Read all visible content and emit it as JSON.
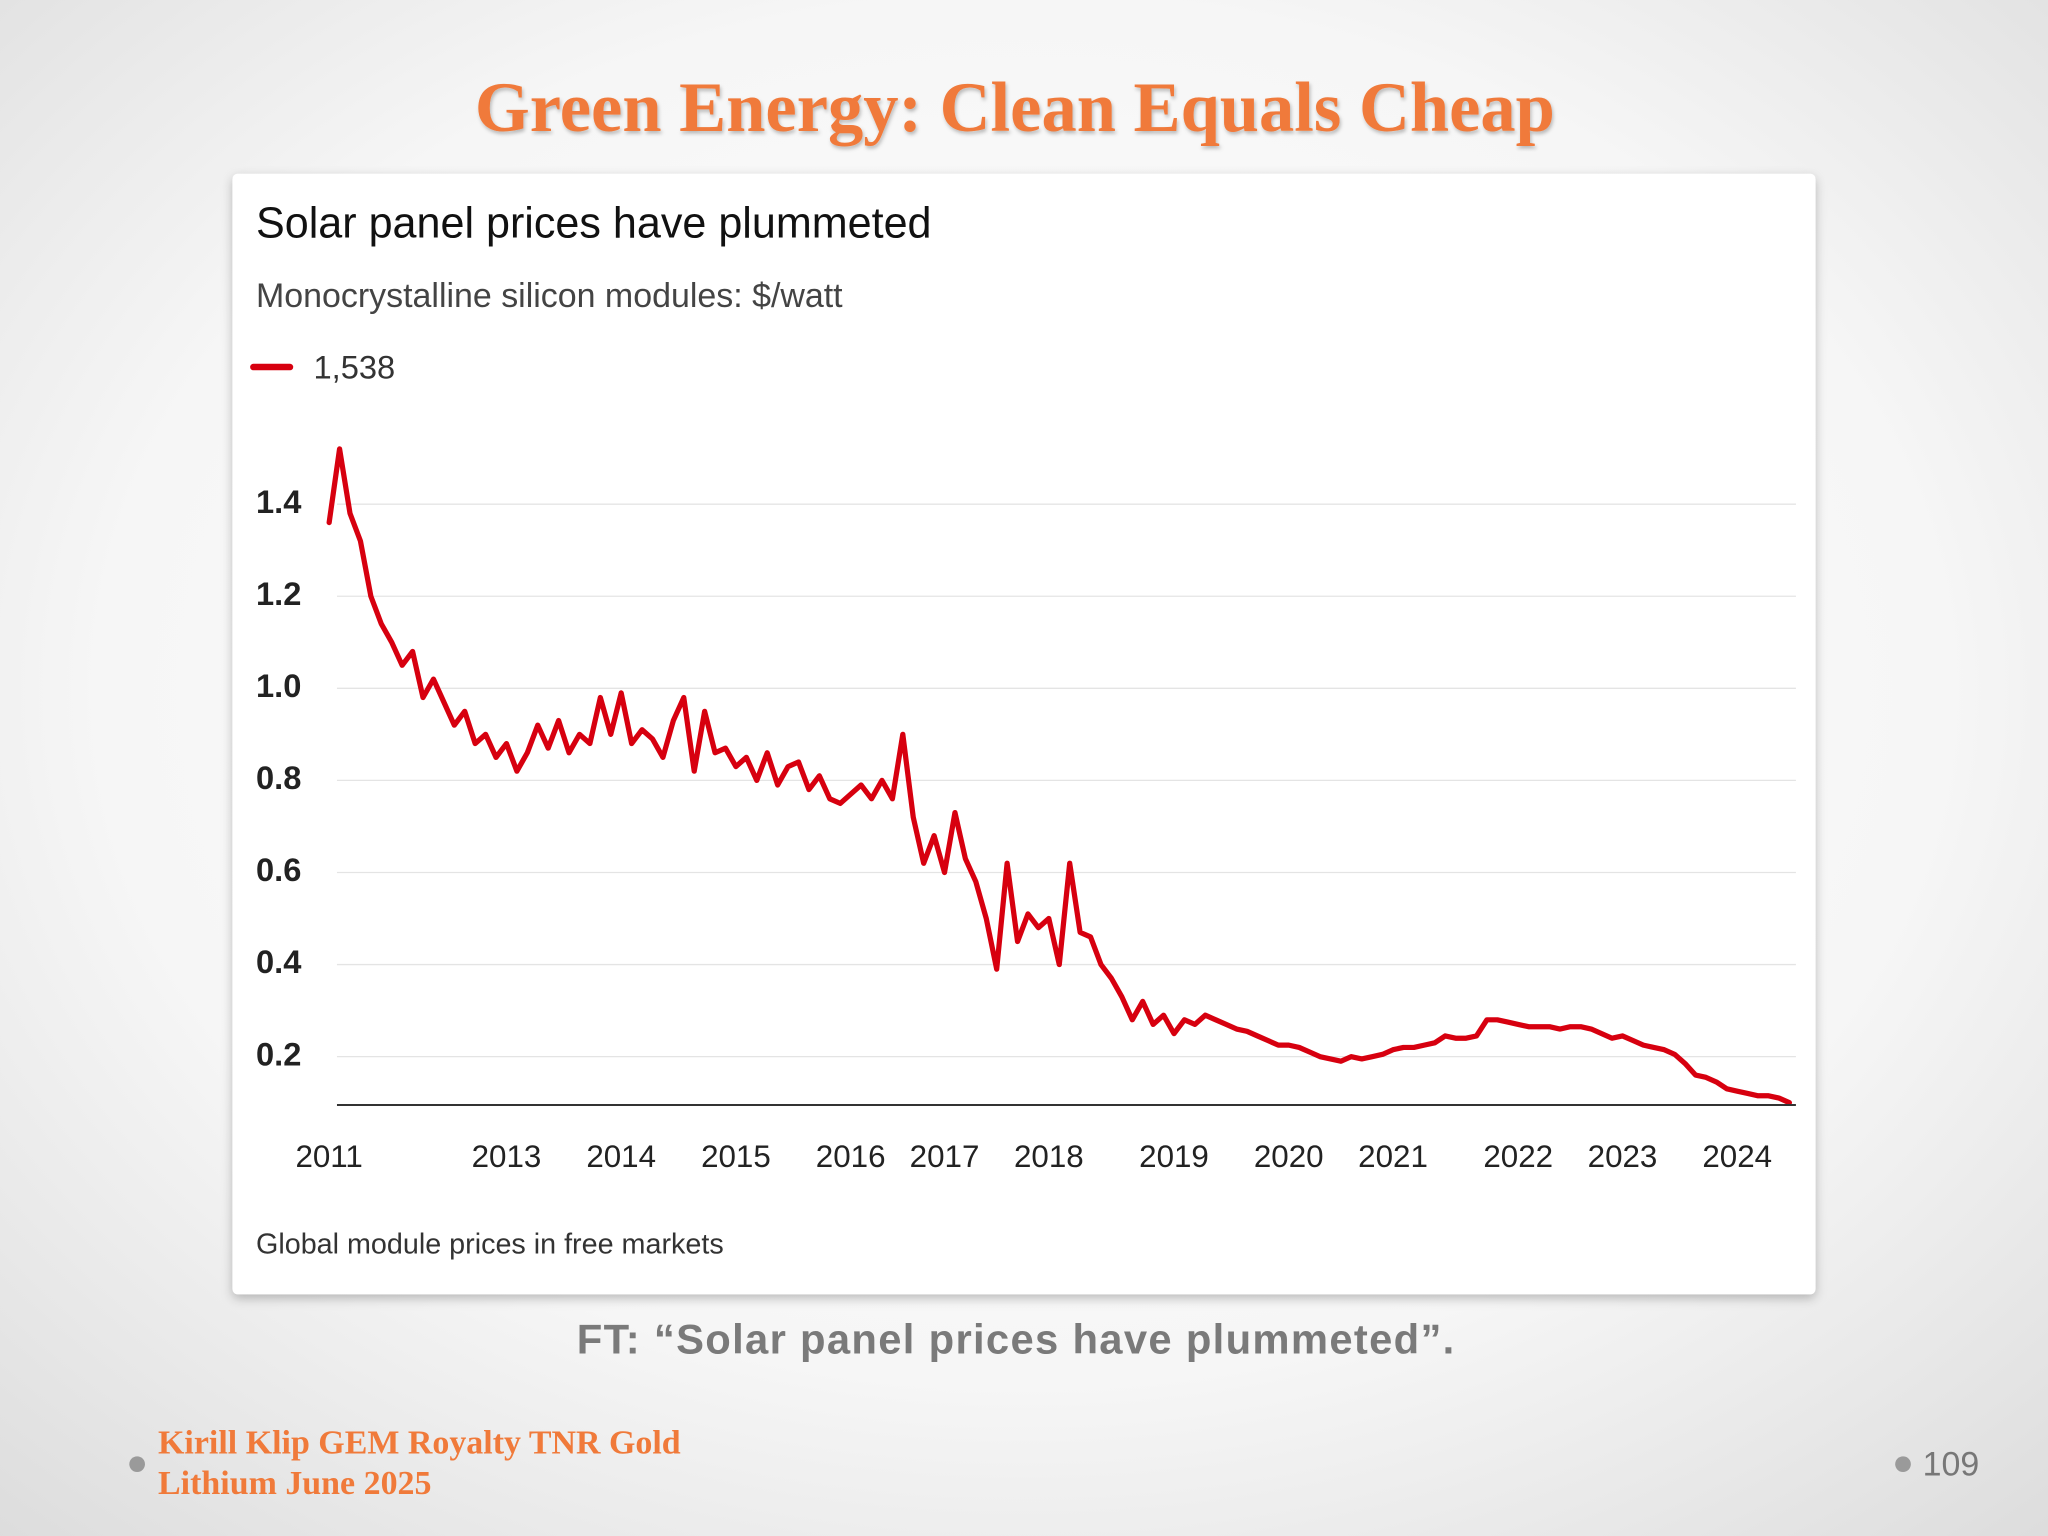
{
  "slide": {
    "title": "Green Energy: Clean Equals Cheap",
    "caption": "FT: “Solar panel prices have plummeted”."
  },
  "footer": {
    "author_lines": [
      "Kirill Klip GEM Royalty TNR Gold",
      "Lithium June 2025"
    ],
    "page": "109"
  },
  "chart_data": {
    "type": "line",
    "title": "Solar panel prices have plummeted",
    "subtitle": "Monocrystalline silicon modules: $/watt",
    "note": "Global module prices in free markets",
    "categories": [
      "2011",
      null,
      null,
      null,
      null,
      null,
      null,
      null,
      null,
      null,
      null,
      null,
      null,
      null,
      null,
      null,
      null,
      "2013",
      null,
      null,
      null,
      null,
      null,
      null,
      null,
      null,
      null,
      null,
      "2014",
      null,
      null,
      null,
      null,
      null,
      null,
      null,
      null,
      null,
      null,
      "2015",
      null,
      null,
      null,
      null,
      null,
      null,
      null,
      null,
      null,
      null,
      "2016",
      null,
      null,
      null,
      null,
      null,
      null,
      null,
      null,
      "2017",
      null,
      null,
      null,
      null,
      null,
      null,
      null,
      null,
      null,
      "2018",
      null,
      null,
      null,
      null,
      null,
      null,
      null,
      null,
      null,
      null,
      null,
      "2019",
      null,
      null,
      null,
      null,
      null,
      null,
      null,
      null,
      null,
      null,
      "2020",
      null,
      null,
      null,
      null,
      null,
      null,
      null,
      null,
      null,
      "2021",
      null,
      null,
      null,
      null,
      null,
      null,
      null,
      null,
      null,
      null,
      null,
      "2022",
      null,
      null,
      null,
      null,
      null,
      null,
      null,
      null,
      null,
      "2023",
      null,
      null,
      null,
      null,
      null,
      null,
      null,
      null,
      null,
      null,
      "2024",
      null,
      null,
      null,
      null,
      null
    ],
    "series": [
      {
        "name": "1,538",
        "color": "#d7000f",
        "values": [
          1.36,
          1.52,
          1.38,
          1.32,
          1.2,
          1.14,
          1.1,
          1.05,
          1.08,
          0.98,
          1.02,
          0.97,
          0.92,
          0.95,
          0.88,
          0.9,
          0.85,
          0.88,
          0.82,
          0.86,
          0.92,
          0.87,
          0.93,
          0.86,
          0.9,
          0.88,
          0.98,
          0.9,
          0.99,
          0.88,
          0.91,
          0.89,
          0.85,
          0.93,
          0.98,
          0.82,
          0.95,
          0.86,
          0.87,
          0.83,
          0.85,
          0.8,
          0.86,
          0.79,
          0.83,
          0.84,
          0.78,
          0.81,
          0.76,
          0.75,
          0.77,
          0.79,
          0.76,
          0.8,
          0.76,
          0.9,
          0.72,
          0.62,
          0.68,
          0.6,
          0.73,
          0.63,
          0.58,
          0.5,
          0.39,
          0.62,
          0.45,
          0.51,
          0.48,
          0.5,
          0.4,
          0.62,
          0.47,
          0.46,
          0.4,
          0.37,
          0.33,
          0.28,
          0.32,
          0.27,
          0.29,
          0.25,
          0.28,
          0.27,
          0.29,
          0.28,
          0.27,
          0.26,
          0.255,
          0.245,
          0.235,
          0.225,
          0.225,
          0.22,
          0.21,
          0.2,
          0.195,
          0.19,
          0.2,
          0.195,
          0.2,
          0.205,
          0.215,
          0.22,
          0.22,
          0.225,
          0.23,
          0.245,
          0.24,
          0.24,
          0.245,
          0.28,
          0.28,
          0.275,
          0.27,
          0.265,
          0.265,
          0.265,
          0.26,
          0.265,
          0.265,
          0.26,
          0.25,
          0.24,
          0.245,
          0.235,
          0.225,
          0.22,
          0.215,
          0.205,
          0.185,
          0.16,
          0.155,
          0.145,
          0.13,
          0.125,
          0.12,
          0.115,
          0.115,
          0.11,
          0.1
        ]
      }
    ],
    "ylim": [
      0.095,
      1.6
    ],
    "yticks": [
      0.2,
      0.4,
      0.6,
      0.8,
      {
        "value": 1,
        "label": "1.0"
      },
      1.2,
      1.4
    ],
    "grid": true
  }
}
